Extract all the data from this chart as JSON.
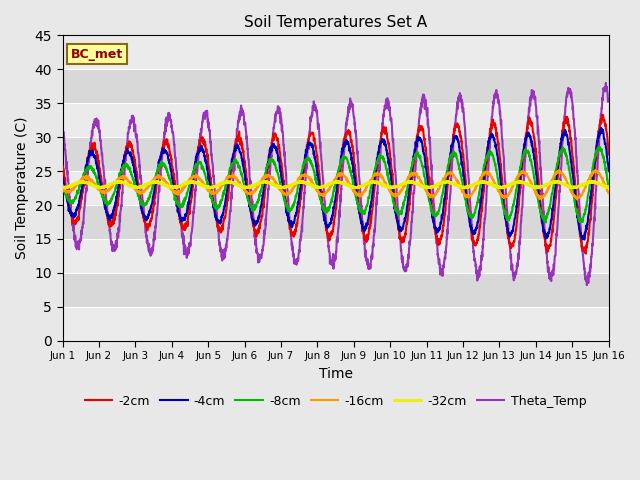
{
  "title": "Soil Temperatures Set A",
  "xlabel": "Time",
  "ylabel": "Soil Temperature (C)",
  "annotation_text": "BC_met",
  "annotation_fg": "#8b0000",
  "annotation_bg": "#ffff99",
  "annotation_border": "#8b6914",
  "xlim": [
    0,
    15
  ],
  "ylim": [
    0,
    45
  ],
  "yticks": [
    0,
    5,
    10,
    15,
    20,
    25,
    30,
    35,
    40,
    45
  ],
  "xtick_labels": [
    "Jun 1",
    "Jun 2",
    "Jun 3",
    "Jun 4",
    "Jun 5",
    "Jun 6",
    "Jun 7",
    "Jun 8",
    "Jun 9",
    "Jun 10",
    "Jun 11",
    "Jun 12",
    "Jun 13",
    "Jun 14",
    "Jun 15",
    "Jun 16"
  ],
  "xtick_positions": [
    0,
    1,
    2,
    3,
    4,
    5,
    6,
    7,
    8,
    9,
    10,
    11,
    12,
    13,
    14,
    15
  ],
  "grid_color": "#ffffff",
  "plot_bg_light": "#ebebeb",
  "plot_bg_dark": "#d8d8d8",
  "fig_bg_color": "#e8e8e8",
  "line_colors": {
    "-2cm": "#ee0000",
    "-4cm": "#0000bb",
    "-8cm": "#00bb00",
    "-16cm": "#ff9900",
    "-32cm": "#eeee00",
    "Theta_Temp": "#9933bb"
  },
  "line_widths": {
    "-2cm": 1.5,
    "-4cm": 1.5,
    "-8cm": 1.5,
    "-16cm": 1.5,
    "-32cm": 2.0,
    "Theta_Temp": 1.5
  }
}
